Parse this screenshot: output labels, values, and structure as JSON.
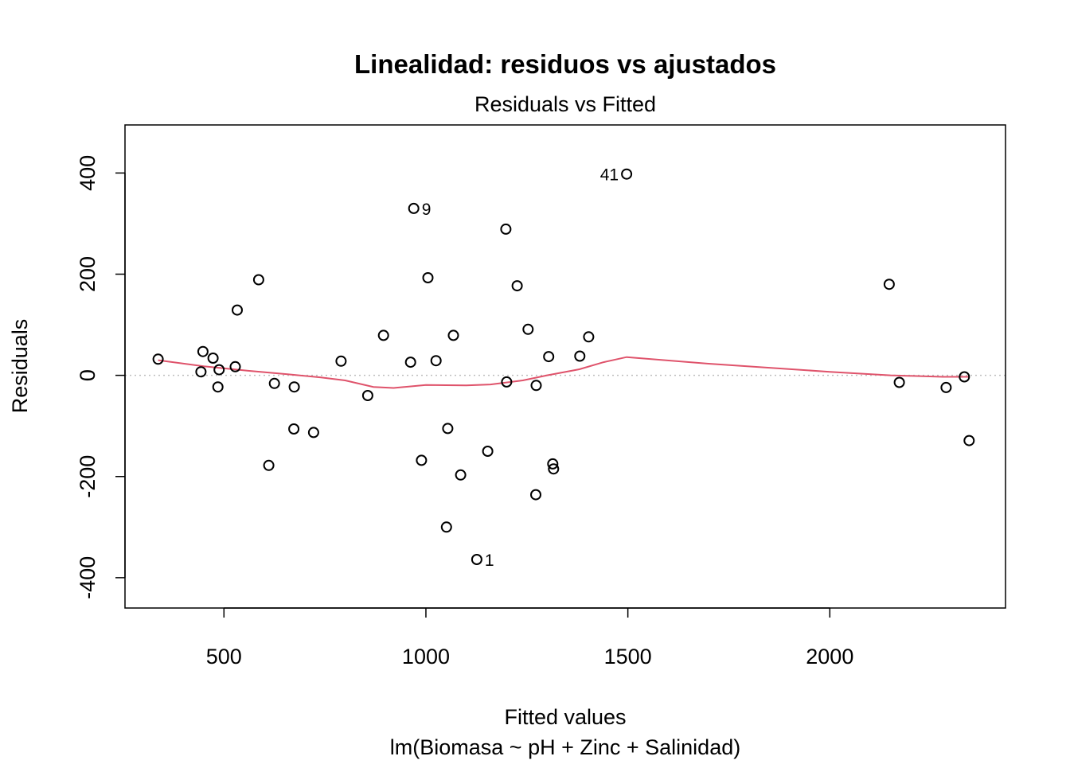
{
  "chart_data": {
    "type": "scatter",
    "title": "Linealidad: residuos vs ajustados",
    "subtitle": "Residuals vs Fitted",
    "xlabel": "Fitted values",
    "xlabel2": "lm(Biomasa ~ pH + Zinc + Salinidad)",
    "ylabel": "Residuals",
    "xlim": [
      255,
      2435
    ],
    "ylim": [
      -460,
      495
    ],
    "xticks": [
      500,
      1000,
      1500,
      2000
    ],
    "yticks": [
      -400,
      -200,
      0,
      200,
      400
    ],
    "grid": false,
    "reference_line_y": 0,
    "points": [
      {
        "x": 337,
        "y": 32
      },
      {
        "x": 443,
        "y": 7
      },
      {
        "x": 448,
        "y": 47
      },
      {
        "x": 473,
        "y": 34
      },
      {
        "x": 485,
        "y": -23
      },
      {
        "x": 488,
        "y": 11
      },
      {
        "x": 528,
        "y": 17
      },
      {
        "x": 533,
        "y": 129
      },
      {
        "x": 586,
        "y": 189
      },
      {
        "x": 611,
        "y": -178
      },
      {
        "x": 625,
        "y": -16
      },
      {
        "x": 673,
        "y": -106
      },
      {
        "x": 674,
        "y": -23
      },
      {
        "x": 722,
        "y": -113
      },
      {
        "x": 790,
        "y": 28
      },
      {
        "x": 856,
        "y": -40
      },
      {
        "x": 895,
        "y": 79
      },
      {
        "x": 962,
        "y": 26
      },
      {
        "x": 970,
        "y": 330,
        "label": "9"
      },
      {
        "x": 989,
        "y": -168
      },
      {
        "x": 1005,
        "y": 193
      },
      {
        "x": 1025,
        "y": 29
      },
      {
        "x": 1051,
        "y": -300
      },
      {
        "x": 1054,
        "y": -105
      },
      {
        "x": 1068,
        "y": 79
      },
      {
        "x": 1086,
        "y": -197
      },
      {
        "x": 1126,
        "y": -364,
        "label": "1"
      },
      {
        "x": 1153,
        "y": -150
      },
      {
        "x": 1198,
        "y": 289
      },
      {
        "x": 1200,
        "y": -13
      },
      {
        "x": 1226,
        "y": 177
      },
      {
        "x": 1253,
        "y": 91
      },
      {
        "x": 1272,
        "y": -236
      },
      {
        "x": 1273,
        "y": -20
      },
      {
        "x": 1304,
        "y": 37
      },
      {
        "x": 1314,
        "y": -175
      },
      {
        "x": 1316,
        "y": -185
      },
      {
        "x": 1381,
        "y": 38
      },
      {
        "x": 1403,
        "y": 76
      },
      {
        "x": 1497,
        "y": 398,
        "label": "41"
      },
      {
        "x": 2147,
        "y": 180
      },
      {
        "x": 2172,
        "y": -14
      },
      {
        "x": 2288,
        "y": -24
      },
      {
        "x": 2333,
        "y": -3
      },
      {
        "x": 2345,
        "y": -129
      }
    ],
    "smoother": [
      [
        337,
        30
      ],
      [
        450,
        18
      ],
      [
        560,
        9
      ],
      [
        660,
        2
      ],
      [
        740,
        -4
      ],
      [
        800,
        -10
      ],
      [
        870,
        -23
      ],
      [
        920,
        -25
      ],
      [
        1000,
        -19
      ],
      [
        1100,
        -20
      ],
      [
        1160,
        -18
      ],
      [
        1240,
        -10
      ],
      [
        1300,
        0
      ],
      [
        1380,
        12
      ],
      [
        1440,
        26
      ],
      [
        1497,
        36
      ],
      [
        1700,
        23
      ],
      [
        2000,
        7
      ],
      [
        2150,
        0
      ],
      [
        2280,
        -3
      ],
      [
        2345,
        -3
      ]
    ],
    "colors": {
      "points": "#000000",
      "smoother": "#DF536B",
      "reference": "#BEBEBE"
    }
  }
}
